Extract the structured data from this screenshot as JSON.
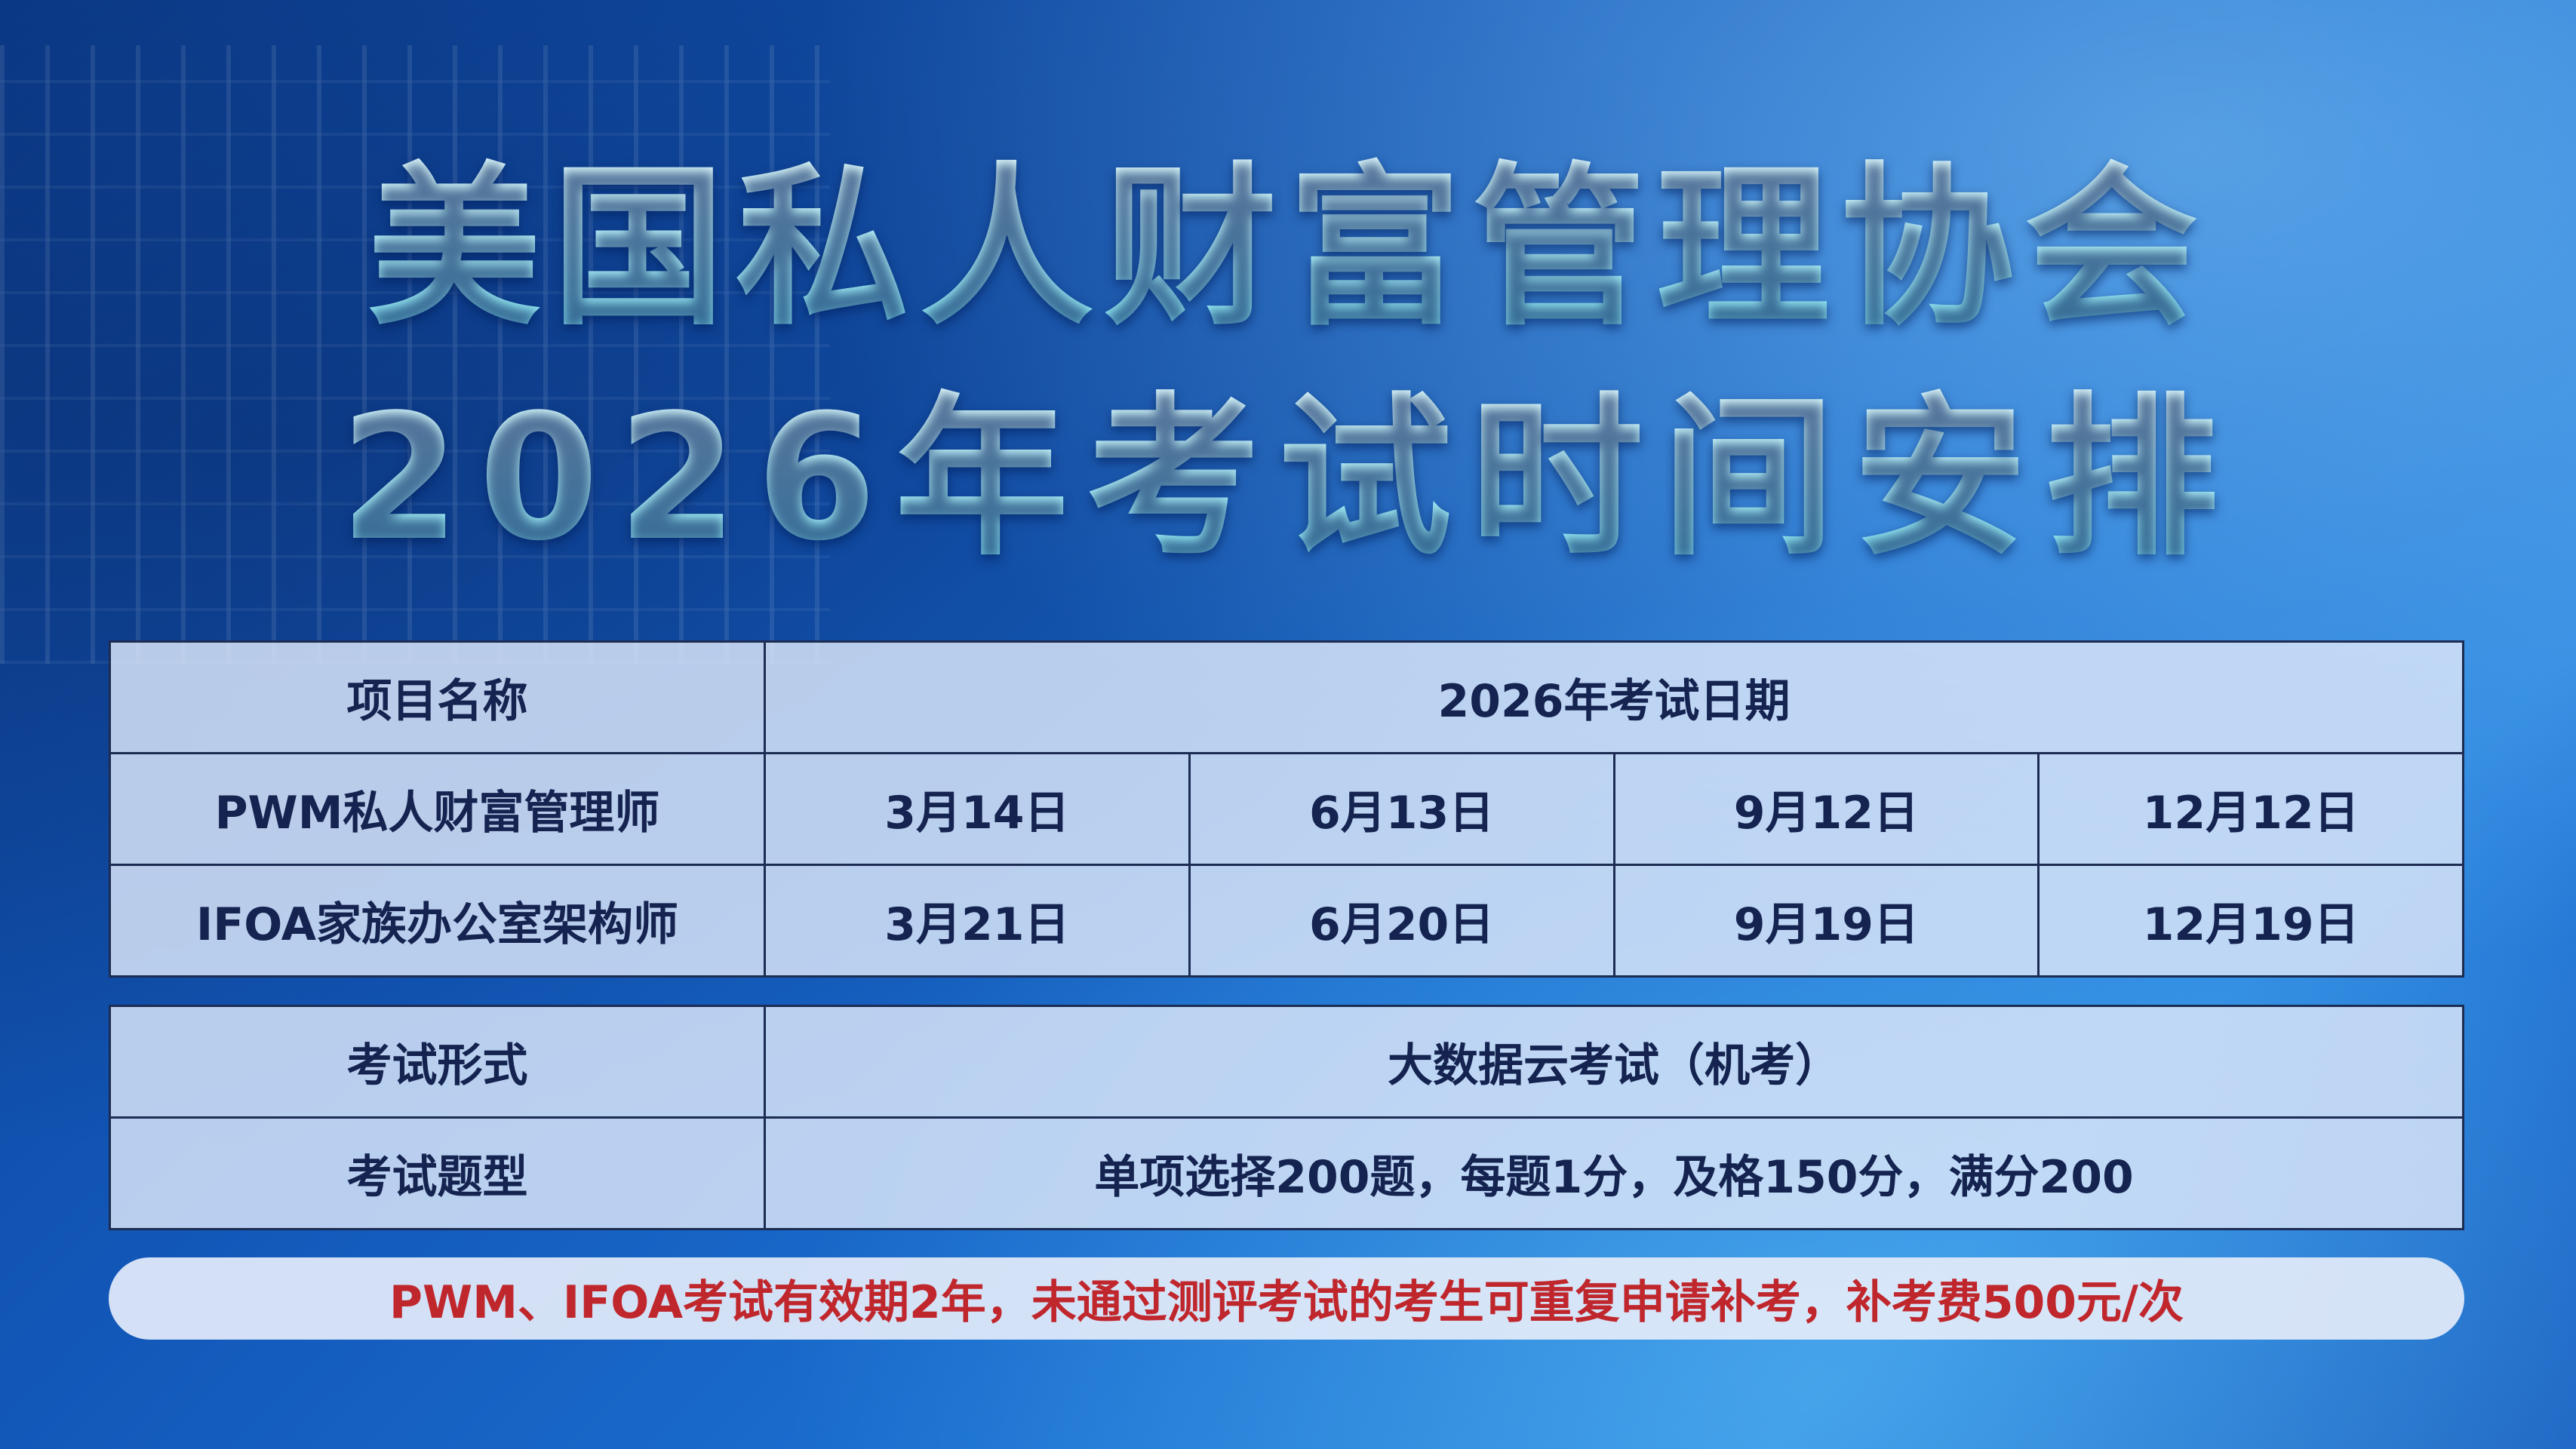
{
  "title": {
    "line1": "美国私人财富管理协会",
    "line2": "2026年考试时间安排"
  },
  "schedule": {
    "headers": {
      "name": "项目名称",
      "dates": "2026年考试日期"
    },
    "rows": [
      {
        "name": "PWM私人财富管理师",
        "dates": [
          "3月14日",
          "6月13日",
          "9月12日",
          "12月12日"
        ]
      },
      {
        "name": "IFOA家族办公室架构师",
        "dates": [
          "3月21日",
          "6月20日",
          "9月19日",
          "12月19日"
        ]
      }
    ]
  },
  "info": {
    "rows": [
      {
        "label": "考试形式",
        "value": "大数据云考试（机考）"
      },
      {
        "label": "考试题型",
        "value": "单项选择200题，每题1分，及格150分，满分200"
      }
    ]
  },
  "footer": {
    "note": "PWM、IFOA考试有效期2年，未通过测评考试的考生可重复申请补考，补考费500元/次"
  },
  "colors": {
    "title": "#b8f4fb",
    "table_text": "#14234f",
    "note_text": "#c0272d",
    "background": "#1257b8"
  }
}
